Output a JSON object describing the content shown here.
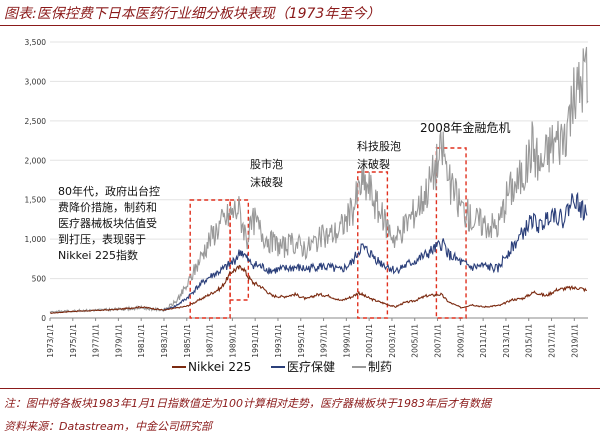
{
  "header": {
    "title": "图表:医保控费下日本医药行业细分板块表现（1973年至今）"
  },
  "footer": {
    "note": "注：图中将各板块1983年1月1日指数值定为100计算相对走势，医疗器械板块于1983年后才有数据",
    "source": "资料来源：Datastream，中金公司研究部"
  },
  "chart_data": {
    "type": "line",
    "title": "图表:医保控费下日本医药行业细分板块表现（1973年至今）",
    "xlabel": "",
    "ylabel": "",
    "xlim": [
      1973,
      2020.2
    ],
    "ylim": [
      0,
      3500
    ],
    "yticks": [
      0,
      500,
      1000,
      1500,
      2000,
      2500,
      3000,
      3500
    ],
    "ytick_labels": [
      "0",
      "500",
      "1,000",
      "1,500",
      "2,000",
      "2,500",
      "3,000",
      "3,500"
    ],
    "xtick_labels": [
      "1973/1/1",
      "1975/1/1",
      "1977/1/1",
      "1979/1/1",
      "1981/1/1",
      "1983/1/1",
      "1985/1/1",
      "1987/1/1",
      "1989/1/1",
      "1991/1/1",
      "1993/1/1",
      "1995/1/1",
      "1997/1/1",
      "1999/1/1",
      "2001/1/1",
      "2003/1/1",
      "2005/1/1",
      "2007/1/1",
      "2009/1/1",
      "2011/1/1",
      "2013/1/1",
      "2015/1/1",
      "2017/1/1",
      "2019/1/1"
    ],
    "series": [
      {
        "name": "Nikkei 225",
        "color": "#7B2A10",
        "x": [
          1973,
          1975,
          1977,
          1979,
          1981,
          1983,
          1985,
          1986,
          1987,
          1988,
          1989,
          1989.9,
          1990.3,
          1990.8,
          1991.5,
          1992.5,
          1993.5,
          1994.5,
          1995.5,
          1996.5,
          1997.5,
          1998.5,
          1999.5,
          2000.1,
          2001,
          2002,
          2003.3,
          2004,
          2005,
          2006,
          2007.3,
          2008,
          2009.1,
          2010,
          2011,
          2012.5,
          2013.5,
          2014.5,
          2015.5,
          2016.5,
          2017.5,
          2018.5,
          2019.5,
          2020.1
        ],
        "values": [
          60,
          85,
          95,
          110,
          140,
          100,
          150,
          220,
          300,
          380,
          600,
          650,
          540,
          450,
          400,
          280,
          270,
          300,
          240,
          300,
          280,
          220,
          270,
          320,
          250,
          200,
          140,
          190,
          220,
          280,
          300,
          200,
          130,
          170,
          140,
          160,
          230,
          250,
          330,
          280,
          360,
          380,
          380,
          350
        ]
      },
      {
        "name": "医疗保健",
        "color": "#2B3F7A",
        "x": [
          1983,
          1984,
          1985,
          1986,
          1987,
          1988,
          1989,
          1989.8,
          1990.5,
          1991.5,
          1992.5,
          1993.5,
          1994.5,
          1995.5,
          1996.5,
          1997.5,
          1998.5,
          1999.5,
          2000.3,
          2001,
          2002,
          2003.3,
          2004,
          2005,
          2006,
          2007.5,
          2008,
          2009.1,
          2010,
          2011,
          2012.3,
          2013,
          2014,
          2015.3,
          2016,
          2017,
          2018,
          2019,
          2019.5,
          2020.1
        ],
        "values": [
          100,
          150,
          250,
          400,
          520,
          600,
          700,
          850,
          700,
          650,
          600,
          620,
          640,
          620,
          660,
          640,
          600,
          700,
          900,
          830,
          700,
          600,
          650,
          720,
          800,
          950,
          800,
          700,
          640,
          660,
          620,
          800,
          980,
          1250,
          1150,
          1350,
          1250,
          1550,
          1400,
          1300
        ]
      },
      {
        "name": "制药",
        "color": "#999999",
        "x": [
          1973,
          1975,
          1977,
          1979,
          1981,
          1983,
          1984,
          1985,
          1986,
          1987,
          1988,
          1989.5,
          1990.3,
          1990.9,
          1991.5,
          1992.5,
          1993.5,
          1994.5,
          1995.5,
          1996.5,
          1997.5,
          1998.3,
          1999.5,
          2000.3,
          2001,
          2002,
          2003.3,
          2004,
          2005,
          2006,
          2007.5,
          2008,
          2009.1,
          2010,
          2011,
          2012.3,
          2013.2,
          2014,
          2014.8,
          2015.3,
          2016,
          2017,
          2018,
          2018.8,
          2019.4,
          2020,
          2020.2
        ],
        "values": [
          80,
          90,
          100,
          110,
          130,
          100,
          200,
          400,
          700,
          1000,
          1200,
          1400,
          1000,
          1250,
          1100,
          950,
          900,
          950,
          880,
          1000,
          1050,
          1100,
          1350,
          1700,
          1650,
          1300,
          1000,
          1150,
          1350,
          1600,
          2150,
          1700,
          1400,
          1250,
          1200,
          1150,
          1600,
          1700,
          1900,
          2200,
          1900,
          2200,
          2300,
          2700,
          2900,
          3200,
          2750
        ]
      }
    ],
    "legend": [
      "Nikkei 225",
      "医疗保健",
      "制药"
    ],
    "annotations": [
      {
        "text": "80年代，政府出台控费降价措施，制药和医疗器械板块估值受到打压，表现弱于Nikkei 225指数"
      },
      {
        "text": "股市泡沫破裂"
      },
      {
        "text": "科技股泡沫破裂"
      },
      {
        "text": "2008年金融危机"
      }
    ],
    "highlight_ranges": [
      [
        1985.3,
        1988.8
      ],
      [
        1988.8,
        1990.4
      ],
      [
        2000.0,
        2002.6
      ],
      [
        2006.9,
        2009.5
      ]
    ]
  },
  "annotation_lines": {
    "a1": [
      "80年代，政府出台控",
      "费降价措施，制药和",
      "医疗器械板块估值受",
      "到打压，表现弱于",
      "Nikkei 225指数"
    ],
    "a2": [
      "股市泡",
      "沫破裂"
    ],
    "a3": [
      "科技股泡",
      "沫破裂"
    ],
    "a4": [
      "2008年金融危机"
    ]
  }
}
